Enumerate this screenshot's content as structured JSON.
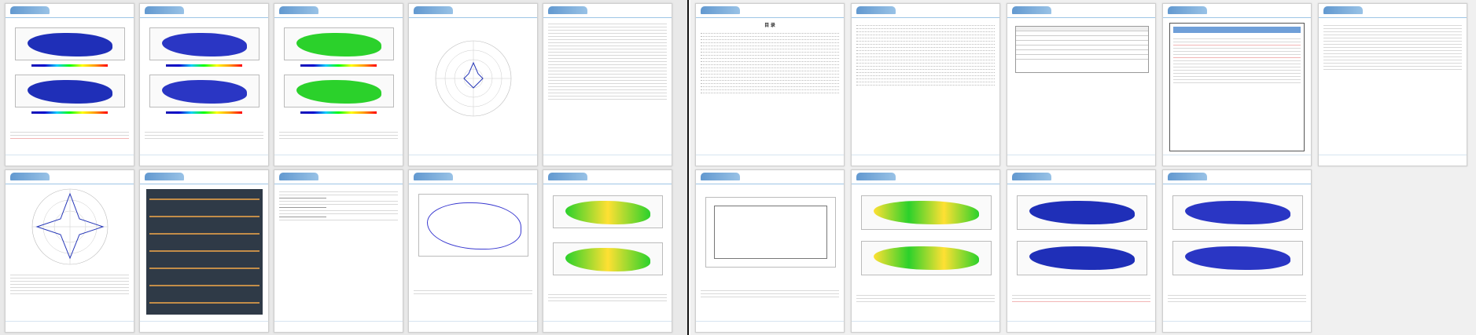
{
  "document": {
    "footer_company": "",
    "left_page_sections": [
      "",
      "",
      "",
      "",
      "",
      "",
      "",
      "",
      "",
      ""
    ],
    "right_page_sections": [
      "",
      "",
      "",
      "",
      "",
      "",
      "",
      "",
      "",
      ""
    ],
    "toc_title": "目 录"
  },
  "colors": {
    "blue_heat": "#1f2fb8",
    "green_heat": "#2bd12b",
    "page_border": "#cfcfcf",
    "divider": "#111111"
  }
}
